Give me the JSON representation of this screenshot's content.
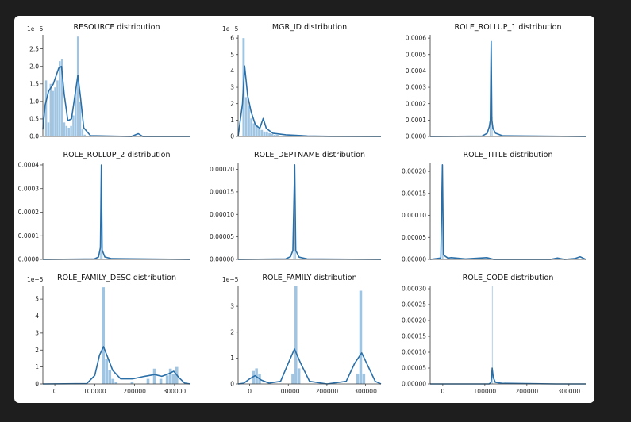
{
  "style": {
    "bar_color": "#7fb1d9",
    "line_color": "#2a6fa8",
    "background": "#1e1e1e",
    "card": "#ffffff"
  },
  "chart_data": [
    {
      "type": "bar",
      "title": "RESOURCE distribution",
      "sci_label": "1e−5",
      "xlim": [
        -5000,
        320000
      ],
      "ylim": [
        0,
        2.9
      ],
      "yticks": [
        0.0,
        0.5,
        1.0,
        1.5,
        2.0,
        2.5
      ],
      "ytick_labels": [
        "0.0",
        "0.5",
        "1.0",
        "1.5",
        "2.0",
        "2.5"
      ],
      "xticks": [],
      "xtick_labels": [],
      "bin_width": 5000,
      "bins": [
        [
          0,
          1.6
        ],
        [
          5000,
          0.4
        ],
        [
          10000,
          1.5
        ],
        [
          15000,
          1.3
        ],
        [
          20000,
          1.4
        ],
        [
          25000,
          1.6
        ],
        [
          30000,
          2.15
        ],
        [
          35000,
          2.2
        ],
        [
          40000,
          0.4
        ],
        [
          45000,
          0.3
        ],
        [
          50000,
          0.25
        ],
        [
          55000,
          0.3
        ],
        [
          60000,
          0.6
        ],
        [
          65000,
          1.35
        ],
        [
          70000,
          2.85
        ],
        [
          75000,
          1.0
        ],
        [
          80000,
          0.2
        ],
        [
          85000,
          0.05
        ]
      ],
      "kde": [
        [
          -5000,
          0.2
        ],
        [
          0,
          0.9
        ],
        [
          8000,
          1.3
        ],
        [
          18000,
          1.5
        ],
        [
          30000,
          1.95
        ],
        [
          36000,
          2.0
        ],
        [
          42000,
          1.2
        ],
        [
          50000,
          0.45
        ],
        [
          58000,
          0.5
        ],
        [
          66000,
          1.2
        ],
        [
          72000,
          1.75
        ],
        [
          78000,
          1.1
        ],
        [
          85000,
          0.25
        ],
        [
          100000,
          0.02
        ],
        [
          190000,
          0.0
        ],
        [
          205000,
          0.08
        ],
        [
          215000,
          0.0
        ],
        [
          320000,
          0.0
        ]
      ]
    },
    {
      "type": "bar",
      "title": "MGR_ID distribution",
      "sci_label": "1e−5",
      "xlim": [
        -10000,
        320000
      ],
      "ylim": [
        0,
        6.2
      ],
      "yticks": [
        0,
        1,
        2,
        3,
        4,
        5,
        6
      ],
      "ytick_labels": [
        "0",
        "1",
        "2",
        "3",
        "4",
        "5",
        "6"
      ],
      "xticks": [],
      "xtick_labels": [],
      "bin_width": 6000,
      "bins": [
        [
          0,
          6.0
        ],
        [
          6000,
          2.4
        ],
        [
          12000,
          1.9
        ],
        [
          18000,
          1.1
        ],
        [
          24000,
          0.8
        ],
        [
          30000,
          0.7
        ],
        [
          36000,
          0.5
        ],
        [
          42000,
          0.4
        ],
        [
          48000,
          0.3
        ],
        [
          54000,
          0.3
        ],
        [
          60000,
          0.2
        ],
        [
          66000,
          0.15
        ],
        [
          72000,
          0.1
        ],
        [
          78000,
          0.1
        ],
        [
          84000,
          0.05
        ]
      ],
      "kde": [
        [
          -10000,
          0.0
        ],
        [
          0,
          2.0
        ],
        [
          5000,
          4.3
        ],
        [
          12000,
          2.5
        ],
        [
          20000,
          1.5
        ],
        [
          30000,
          0.7
        ],
        [
          40000,
          0.5
        ],
        [
          48000,
          1.1
        ],
        [
          55000,
          0.5
        ],
        [
          70000,
          0.2
        ],
        [
          100000,
          0.1
        ],
        [
          150000,
          0.03
        ],
        [
          200000,
          0.01
        ],
        [
          320000,
          0.0
        ]
      ]
    },
    {
      "type": "bar",
      "title": "ROLE_ROLLUP_1 distribution",
      "sci_label": "",
      "xlim": [
        0,
        300000
      ],
      "ylim": [
        0,
        0.00062
      ],
      "yticks": [
        0,
        0.0001,
        0.0002,
        0.0003,
        0.0004,
        0.0005,
        0.0006
      ],
      "ytick_labels": [
        "0.0000",
        "0.0001",
        "0.0002",
        "0.0003",
        "0.0004",
        "0.0005",
        "0.0006"
      ],
      "xticks": [],
      "xtick_labels": [],
      "bin_width": 2000,
      "bins": [
        [
          115000,
          8e-05
        ],
        [
          117000,
          0.00058
        ],
        [
          119000,
          0.00012
        ]
      ],
      "kde": [
        [
          0,
          0.0
        ],
        [
          100000,
          2e-06
        ],
        [
          110000,
          2e-05
        ],
        [
          114000,
          6e-05
        ],
        [
          116000,
          0.0001
        ],
        [
          117500,
          0.00058
        ],
        [
          119000,
          0.0001
        ],
        [
          121000,
          5e-05
        ],
        [
          126000,
          2e-05
        ],
        [
          140000,
          4e-06
        ],
        [
          300000,
          0.0
        ]
      ]
    },
    {
      "type": "bar",
      "title": "ROLE_ROLLUP_2 distribution",
      "sci_label": "",
      "xlim": [
        0,
        300000
      ],
      "ylim": [
        0,
        0.00041
      ],
      "yticks": [
        0,
        0.0001,
        0.0002,
        0.0003,
        0.0004
      ],
      "ytick_labels": [
        "0.0000",
        "0.0001",
        "0.0002",
        "0.0003",
        "0.0004"
      ],
      "xticks": [],
      "xtick_labels": [],
      "bin_width": 2000,
      "bins": [
        [
          116000,
          6e-05
        ],
        [
          118000,
          0.0004
        ],
        [
          120000,
          5e-05
        ]
      ],
      "kde": [
        [
          0,
          0.0
        ],
        [
          105000,
          2e-06
        ],
        [
          113000,
          1e-05
        ],
        [
          117000,
          5e-05
        ],
        [
          118800,
          0.0004
        ],
        [
          120500,
          4e-05
        ],
        [
          126000,
          1e-05
        ],
        [
          140000,
          3e-06
        ],
        [
          300000,
          0.0
        ]
      ]
    },
    {
      "type": "bar",
      "title": "ROLE_DEPTNAME distribution",
      "sci_label": "",
      "xlim": [
        0,
        300000
      ],
      "ylim": [
        0,
        0.000215
      ],
      "yticks": [
        0,
        5e-05,
        0.0001,
        0.00015,
        0.0002
      ],
      "ytick_labels": [
        "0.00000",
        "0.00005",
        "0.00010",
        "0.00015",
        "0.00020"
      ],
      "xticks": [],
      "xtick_labels": [],
      "bin_width": 2000,
      "bins": [
        [
          116000,
          4e-05
        ],
        [
          118000,
          0.00021
        ],
        [
          120000,
          3e-05
        ]
      ],
      "kde": [
        [
          0,
          0.0
        ],
        [
          100000,
          1e-06
        ],
        [
          110000,
          6e-06
        ],
        [
          115000,
          2e-05
        ],
        [
          118800,
          0.00021
        ],
        [
          121000,
          2e-05
        ],
        [
          128000,
          5e-06
        ],
        [
          145000,
          1e-06
        ],
        [
          300000,
          0.0
        ]
      ]
    },
    {
      "type": "bar",
      "title": "ROLE_TITLE distribution",
      "sci_label": "",
      "xlim": [
        100000,
        320000
      ],
      "ylim": [
        0,
        0.00022
      ],
      "yticks": [
        0,
        5e-05,
        0.0001,
        0.00015,
        0.0002
      ],
      "ytick_labels": [
        "0.00000",
        "0.00005",
        "0.00010",
        "0.00015",
        "0.00020"
      ],
      "xticks": [],
      "xtick_labels": [],
      "bin_width": 1500,
      "bins": [
        [
          117000,
          0.000215
        ],
        [
          118500,
          1e-05
        ]
      ],
      "kde": [
        [
          100000,
          0.0
        ],
        [
          115000,
          3e-06
        ],
        [
          117300,
          0.000215
        ],
        [
          118700,
          1e-05
        ],
        [
          125000,
          3e-06
        ],
        [
          130000,
          4e-06
        ],
        [
          150000,
          1e-06
        ],
        [
          180000,
          4e-06
        ],
        [
          190000,
          0.0
        ],
        [
          270000,
          0.0
        ],
        [
          280000,
          3e-06
        ],
        [
          290000,
          0.0
        ],
        [
          305000,
          2e-06
        ],
        [
          312000,
          6e-06
        ],
        [
          320000,
          0.0
        ]
      ]
    },
    {
      "type": "bar",
      "title": "ROLE_FAMILY_DESC distribution",
      "sci_label": "1e−5",
      "xlim": [
        -30000,
        340000
      ],
      "ylim": [
        0,
        5.8
      ],
      "yticks": [
        0,
        1,
        2,
        3,
        4,
        5
      ],
      "ytick_labels": [
        "0",
        "1",
        "2",
        "3",
        "4",
        "5"
      ],
      "xticks": [
        0,
        100000,
        200000,
        300000
      ],
      "xtick_labels": [
        "0",
        "100000",
        "200000",
        "300000"
      ],
      "bin_width": 8000,
      "bins": [
        [
          118000,
          5.7
        ],
        [
          126000,
          1.5
        ],
        [
          134000,
          0.8
        ],
        [
          142000,
          0.3
        ],
        [
          150000,
          0.1
        ],
        [
          190000,
          0.1
        ],
        [
          230000,
          0.3
        ],
        [
          246000,
          0.9
        ],
        [
          262000,
          0.3
        ],
        [
          278000,
          0.5
        ],
        [
          286000,
          0.9
        ],
        [
          294000,
          0.6
        ],
        [
          302000,
          1.0
        ]
      ],
      "kde": [
        [
          -30000,
          0.0
        ],
        [
          80000,
          0.02
        ],
        [
          100000,
          0.5
        ],
        [
          112000,
          1.7
        ],
        [
          122000,
          2.2
        ],
        [
          132000,
          1.6
        ],
        [
          145000,
          0.8
        ],
        [
          165000,
          0.3
        ],
        [
          195000,
          0.3
        ],
        [
          225000,
          0.45
        ],
        [
          250000,
          0.55
        ],
        [
          268000,
          0.45
        ],
        [
          285000,
          0.6
        ],
        [
          298000,
          0.75
        ],
        [
          310000,
          0.4
        ],
        [
          325000,
          0.05
        ],
        [
          340000,
          0.0
        ]
      ]
    },
    {
      "type": "bar",
      "title": "ROLE_FAMILY distribution",
      "sci_label": "1e−5",
      "xlim": [
        -30000,
        340000
      ],
      "ylim": [
        0,
        3.8
      ],
      "yticks": [
        0,
        1,
        2,
        3
      ],
      "ytick_labels": [
        "0",
        "1",
        "2",
        "3"
      ],
      "xticks": [
        0,
        100000,
        200000,
        300000
      ],
      "xtick_labels": [
        "0",
        "100000",
        "200000",
        "300000"
      ],
      "bin_width": 8000,
      "bins": [
        [
          6000,
          0.5
        ],
        [
          14000,
          0.6
        ],
        [
          22000,
          0.4
        ],
        [
          108000,
          0.4
        ],
        [
          116000,
          3.8
        ],
        [
          124000,
          0.6
        ],
        [
          276000,
          0.4
        ],
        [
          284000,
          3.6
        ],
        [
          292000,
          0.4
        ]
      ],
      "kde": [
        [
          -30000,
          0.0
        ],
        [
          -15000,
          0.03
        ],
        [
          0,
          0.2
        ],
        [
          14000,
          0.32
        ],
        [
          30000,
          0.15
        ],
        [
          50000,
          0.03
        ],
        [
          80000,
          0.1
        ],
        [
          100000,
          0.8
        ],
        [
          116000,
          1.35
        ],
        [
          132000,
          0.8
        ],
        [
          155000,
          0.1
        ],
        [
          200000,
          0.0
        ],
        [
          250000,
          0.1
        ],
        [
          272000,
          0.8
        ],
        [
          290000,
          1.2
        ],
        [
          306000,
          0.7
        ],
        [
          325000,
          0.1
        ],
        [
          340000,
          0.0
        ]
      ]
    },
    {
      "type": "bar",
      "title": "ROLE_CODE distribution",
      "sci_label": "",
      "xlim": [
        -30000,
        340000
      ],
      "ylim": [
        0,
        0.00031
      ],
      "yticks": [
        0,
        5e-05,
        0.0001,
        0.00015,
        0.0002,
        0.00025,
        0.0003
      ],
      "ytick_labels": [
        "0.00000",
        "0.00005",
        "0.00010",
        "0.00015",
        "0.00020",
        "0.00025",
        "0.00030"
      ],
      "xticks": [
        0,
        100000,
        200000,
        300000
      ],
      "xtick_labels": [
        "0",
        "100000",
        "200000",
        "300000"
      ],
      "bin_width": 1500,
      "bins": [
        [
          117000,
          0.00031
        ]
      ],
      "kde": [
        [
          -30000,
          0.0
        ],
        [
          110000,
          0.0
        ],
        [
          115000,
          5e-06
        ],
        [
          117500,
          5e-05
        ],
        [
          120000,
          2e-05
        ],
        [
          125000,
          5e-06
        ],
        [
          140000,
          2e-06
        ],
        [
          270000,
          0.0
        ],
        [
          340000,
          0.0
        ]
      ]
    }
  ]
}
